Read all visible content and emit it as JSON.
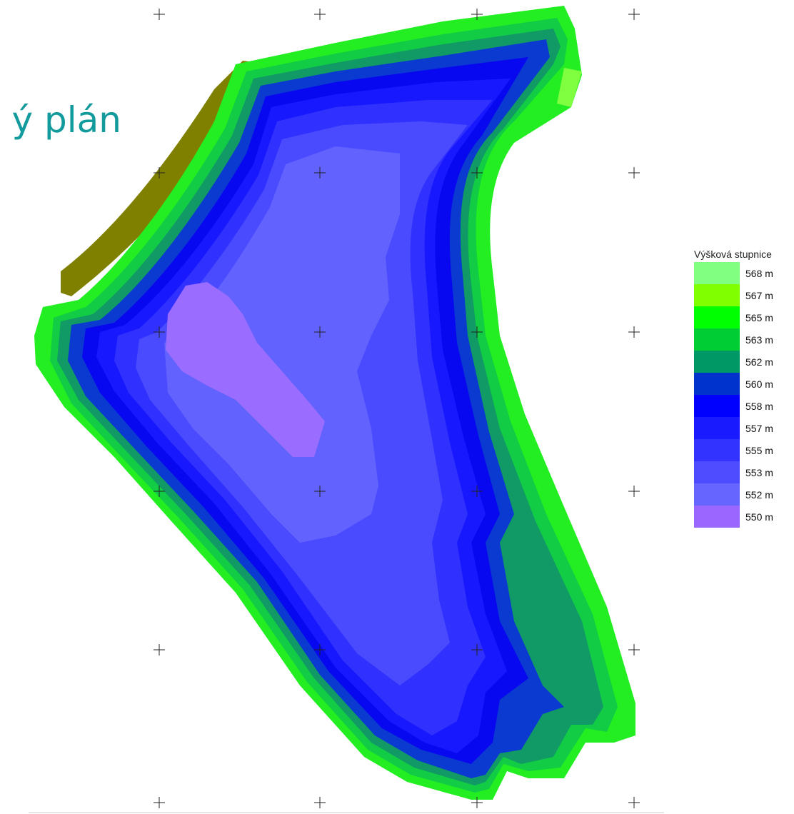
{
  "title": "ý plán",
  "legend": {
    "title": "Výšková stupnice",
    "levels": [
      {
        "label": "568 m",
        "color": "#80ff80"
      },
      {
        "label": "567 m",
        "color": "#80ff00"
      },
      {
        "label": "565 m",
        "color": "#00ff00"
      },
      {
        "label": "563 m",
        "color": "#00cc33"
      },
      {
        "label": "562 m",
        "color": "#009966"
      },
      {
        "label": "560 m",
        "color": "#0033cc"
      },
      {
        "label": "558 m",
        "color": "#0000ff"
      },
      {
        "label": "557 m",
        "color": "#1a1aff"
      },
      {
        "label": "555 m",
        "color": "#3333ff"
      },
      {
        "label": "553 m",
        "color": "#4d4dff"
      },
      {
        "label": "552 m",
        "color": "#6666ff"
      },
      {
        "label": "550 m",
        "color": "#9966ff"
      }
    ]
  },
  "colors": {
    "outer_bank": "#808000",
    "title_text": "#139a9c",
    "grid_mark": "#222222"
  }
}
